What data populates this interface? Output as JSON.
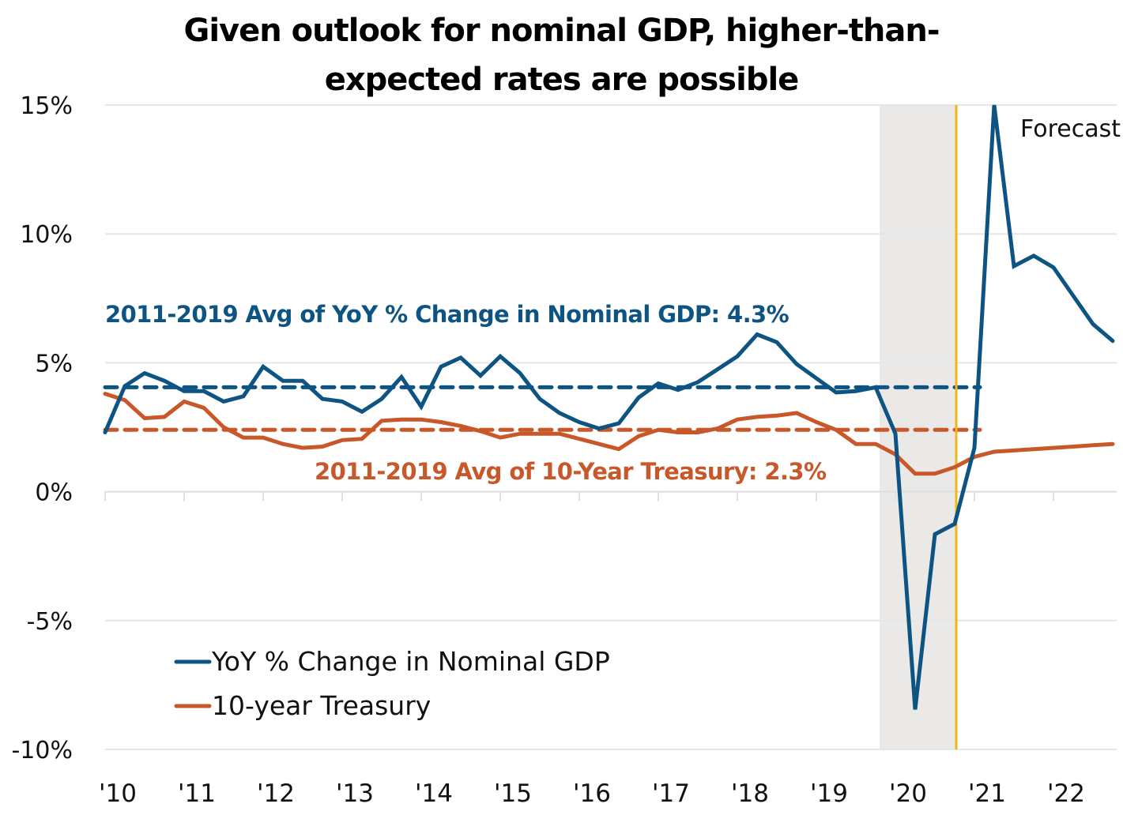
{
  "chart_data": {
    "type": "line",
    "title": "Given outlook for nominal GDP, higher-than-expected rates are possible",
    "title_lines": [
      "Given outlook for nominal GDP, higher-than-",
      "expected rates are possible"
    ],
    "xlabel": "",
    "ylabel": "",
    "ylim": [
      -10,
      15
    ],
    "xlim": [
      2010.0,
      2022.75
    ],
    "grid": "horizontal",
    "y_ticks": [
      {
        "value": 15,
        "label": "15%"
      },
      {
        "value": 10,
        "label": "10%"
      },
      {
        "value": 5,
        "label": "5%"
      },
      {
        "value": 0,
        "label": "0%"
      },
      {
        "value": -5,
        "label": "-5%"
      },
      {
        "value": -10,
        "label": "-10%"
      }
    ],
    "x_ticks": [
      {
        "value": 2010,
        "label": "'10"
      },
      {
        "value": 2011,
        "label": "'11"
      },
      {
        "value": 2012,
        "label": "'12"
      },
      {
        "value": 2013,
        "label": "'13"
      },
      {
        "value": 2014,
        "label": "'14"
      },
      {
        "value": 2015,
        "label": "'15"
      },
      {
        "value": 2016,
        "label": "'16"
      },
      {
        "value": 2017,
        "label": "'17"
      },
      {
        "value": 2018,
        "label": "'18"
      },
      {
        "value": 2019,
        "label": "'19"
      },
      {
        "value": 2020,
        "label": "'20"
      },
      {
        "value": 2021,
        "label": "'21"
      },
      {
        "value": 2022,
        "label": "'22"
      }
    ],
    "x_step": 0.25,
    "x_start": 2010.0,
    "series": [
      {
        "name": "YoY % Change in Nominal GDP",
        "color": "#0e5483",
        "values": [
          2.3,
          4.1,
          4.6,
          4.3,
          3.9,
          3.9,
          3.5,
          3.7,
          4.85,
          4.3,
          4.3,
          3.6,
          3.5,
          3.1,
          3.6,
          4.45,
          3.3,
          4.85,
          5.2,
          4.5,
          5.25,
          4.6,
          3.6,
          3.05,
          2.7,
          2.45,
          2.65,
          3.65,
          4.2,
          3.95,
          4.25,
          4.75,
          5.25,
          6.1,
          5.8,
          4.95,
          4.4,
          3.85,
          3.9,
          4.05,
          2.25,
          -8.45,
          -1.65,
          -1.25,
          1.7,
          15.0,
          8.75,
          9.15,
          8.7,
          7.6,
          6.5,
          5.85
        ]
      },
      {
        "name": "10-year Treasury",
        "color": "#c8572a",
        "values": [
          3.8,
          3.55,
          2.85,
          2.9,
          3.5,
          3.25,
          2.5,
          2.1,
          2.1,
          1.85,
          1.7,
          1.75,
          2.0,
          2.05,
          2.75,
          2.8,
          2.8,
          2.7,
          2.55,
          2.35,
          2.1,
          2.25,
          2.25,
          2.25,
          2.05,
          1.85,
          1.65,
          2.15,
          2.4,
          2.3,
          2.3,
          2.45,
          2.8,
          2.9,
          2.95,
          3.05,
          2.7,
          2.4,
          1.85,
          1.85,
          1.45,
          0.7,
          0.7,
          0.95,
          1.35,
          1.55,
          1.6,
          1.65,
          1.7,
          1.75,
          1.8,
          1.85
        ]
      }
    ],
    "reference_lines": [
      {
        "name": "gdp-average",
        "label": "2011-2019 Avg of YoY % Change in Nominal GDP: 4.3%",
        "value": 4.3,
        "drawn_level": 4.05,
        "color": "#0e5483",
        "style": "dashed"
      },
      {
        "name": "treasury-average",
        "label": "2011-2019 Avg of 10-Year Treasury: 2.3%",
        "value": 2.3,
        "drawn_level": 2.4,
        "color": "#c8572a",
        "style": "dashed"
      }
    ],
    "shaded_region": {
      "name": "recession",
      "x_from": 2019.8,
      "x_to": 2020.77,
      "color": "#ebe9e8"
    },
    "forecast_line": {
      "x": 2020.77,
      "color": "#f3b61a",
      "label": "Forecast"
    },
    "legend": {
      "placement": "bottom-left",
      "entries": [
        {
          "label": "YoY % Change in Nominal GDP",
          "color": "#0e5483"
        },
        {
          "label": "10-year Treasury",
          "color": "#c8572a"
        }
      ]
    }
  }
}
